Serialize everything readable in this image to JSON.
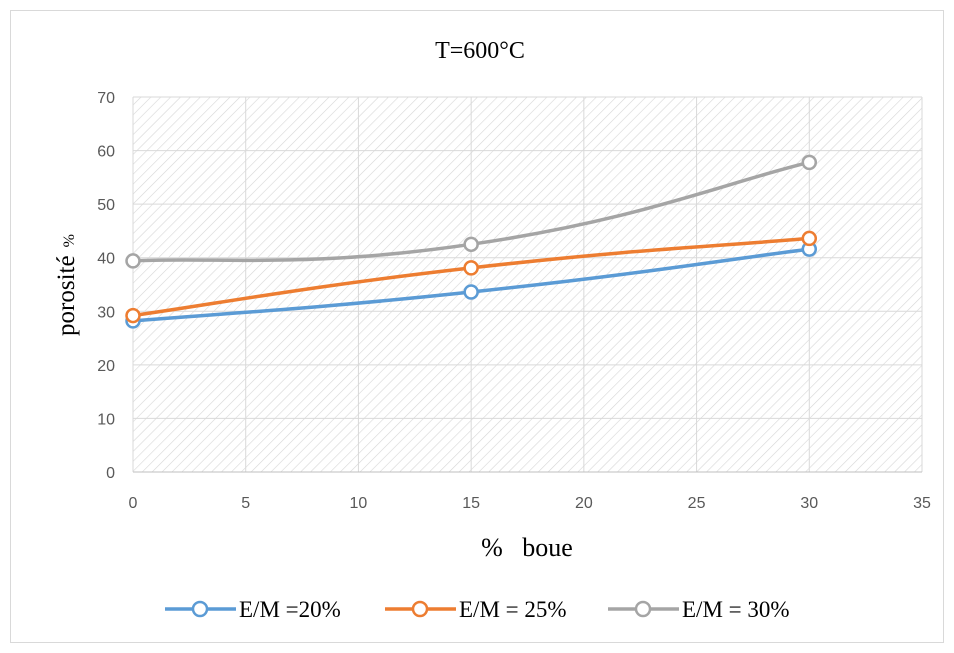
{
  "chart_data": {
    "type": "line",
    "title": "T=600°C",
    "xlabel": "%   boue",
    "ylabel_main": "porosité",
    "ylabel_unit": "%",
    "xlim": [
      0,
      35
    ],
    "ylim": [
      0,
      70
    ],
    "x_ticks": [
      0,
      5,
      10,
      15,
      20,
      25,
      30,
      35
    ],
    "y_ticks": [
      0,
      10,
      20,
      30,
      40,
      50,
      60,
      70
    ],
    "x_tick_labels": [
      "0",
      "5",
      "10",
      "15",
      "20",
      "25",
      "30",
      "35"
    ],
    "y_tick_labels": [
      "0",
      "10",
      "20",
      "30",
      "40",
      "50",
      "60",
      "70"
    ],
    "grid": true,
    "plot_background": "hatched",
    "legend_position": "bottom",
    "x": [
      0,
      15,
      30
    ],
    "series": [
      {
        "name": "E/M =20%",
        "color": "#5B9BD5",
        "values": [
          28.2,
          33.6,
          41.6
        ]
      },
      {
        "name": "E/M = 25%",
        "color": "#ED7D31",
        "values": [
          29.2,
          38.1,
          43.6
        ]
      },
      {
        "name": "E/M = 30%",
        "color": "#A5A5A5",
        "values": [
          39.4,
          42.5,
          57.8
        ]
      }
    ]
  }
}
